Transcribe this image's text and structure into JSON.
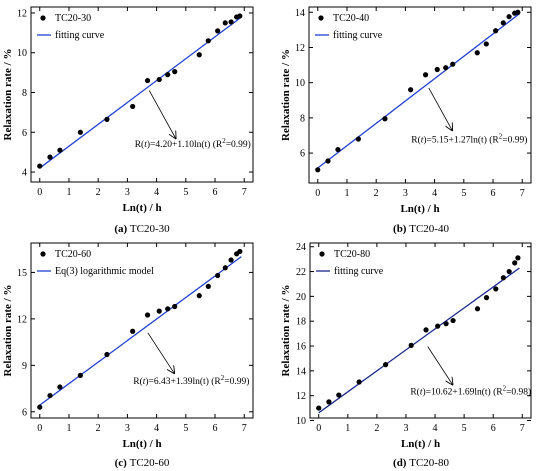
{
  "figure": {
    "y_axis_label": "Relaxation rate / %",
    "x_axis_label": "Ln(t) / h"
  },
  "chart_data": [
    {
      "type": "scatter",
      "caption_letter": "(a)",
      "caption_text": "TC20-30",
      "xlim": [
        -0.3,
        7.3
      ],
      "ylim": [
        3.5,
        12.3
      ],
      "xticks": [
        0,
        1,
        2,
        3,
        4,
        5,
        6,
        7
      ],
      "yticks": [
        4,
        6,
        8,
        10,
        12
      ],
      "legend_position": "top-left",
      "series": [
        {
          "name": "TC20-30",
          "kind": "points",
          "color": "#000000",
          "x": [
            0,
            0.35,
            0.69,
            1.39,
            2.3,
            3.18,
            3.69,
            4.09,
            4.38,
            4.62,
            5.46,
            5.77,
            6.09,
            6.35,
            6.55,
            6.74,
            6.85
          ],
          "y": [
            4.3,
            4.75,
            5.1,
            6.0,
            6.65,
            7.3,
            8.6,
            8.65,
            8.9,
            9.05,
            9.9,
            10.6,
            11.1,
            11.5,
            11.55,
            11.8,
            11.85
          ]
        },
        {
          "name": "fitting curve",
          "kind": "line",
          "color": "#1f3fd1",
          "intercept": 4.2,
          "slope": 1.1,
          "x_range": [
            0,
            6.9
          ]
        }
      ],
      "annotation": {
        "prefix": "R(",
        "var": "t",
        "mid": ")=4.20+1.10ln(t)",
        "r2": "(R",
        "sup": "2",
        "r2_end": "=0.99)",
        "arrow_from": [
          3.75,
          8.1
        ],
        "arrow_to": [
          4.65,
          5.7
        ],
        "text_at": [
          3.25,
          5.25
        ]
      }
    },
    {
      "type": "scatter",
      "caption_letter": "(b)",
      "caption_text": "TC20-40",
      "xlim": [
        -0.3,
        7.3
      ],
      "ylim": [
        4.3,
        14.3
      ],
      "xticks": [
        0,
        1,
        2,
        3,
        4,
        5,
        6,
        7
      ],
      "yticks": [
        6,
        8,
        10,
        12,
        14
      ],
      "legend_position": "top-left",
      "series": [
        {
          "name": "TC20-40",
          "kind": "points",
          "color": "#000000",
          "x": [
            0,
            0.35,
            0.69,
            1.39,
            2.3,
            3.18,
            3.69,
            4.09,
            4.38,
            4.62,
            5.46,
            5.77,
            6.09,
            6.35,
            6.55,
            6.74,
            6.85
          ],
          "y": [
            5.05,
            5.55,
            6.2,
            6.8,
            7.95,
            9.6,
            10.45,
            10.75,
            10.85,
            11.05,
            11.7,
            12.2,
            12.95,
            13.4,
            13.75,
            13.95,
            14.0
          ]
        },
        {
          "name": "fitting curve",
          "kind": "line",
          "color": "#1f3fd1",
          "intercept": 5.15,
          "slope": 1.27,
          "x_range": [
            0,
            6.9
          ]
        }
      ],
      "annotation": {
        "prefix": "R(",
        "var": "t",
        "mid": ")=5.15+1.27ln(t)",
        "r2": "(R",
        "sup": "2",
        "r2_end": "=0.99)",
        "arrow_from": [
          3.8,
          9.7
        ],
        "arrow_to": [
          4.6,
          7.3
        ],
        "text_at": [
          3.2,
          6.6
        ]
      }
    },
    {
      "type": "scatter",
      "caption_letter": "(c)",
      "caption_text": "TC20-60",
      "xlim": [
        -0.3,
        7.3
      ],
      "ylim": [
        5.6,
        16.9
      ],
      "xticks": [
        0,
        1,
        2,
        3,
        4,
        5,
        6,
        7
      ],
      "yticks": [
        6,
        9,
        12,
        15
      ],
      "legend_position": "top-left",
      "series": [
        {
          "name": "TC20-60",
          "kind": "points",
          "color": "#000000",
          "x": [
            0,
            0.35,
            0.69,
            1.39,
            2.3,
            3.18,
            3.69,
            4.09,
            4.38,
            4.62,
            5.46,
            5.77,
            6.09,
            6.35,
            6.55,
            6.74,
            6.85
          ],
          "y": [
            6.3,
            7.05,
            7.6,
            8.35,
            9.7,
            11.2,
            12.25,
            12.5,
            12.65,
            12.8,
            13.5,
            14.1,
            14.8,
            15.3,
            15.8,
            16.2,
            16.35
          ]
        },
        {
          "name": "Eq(3) logarithmic model",
          "kind": "line",
          "color": "#1f3fd1",
          "intercept": 6.43,
          "slope": 1.39,
          "x_range": [
            0,
            6.9
          ]
        }
      ],
      "annotation": {
        "prefix": "R(",
        "var": "t",
        "mid": ")=6.43+1.39ln(t)",
        "r2": "(R",
        "sup": "2",
        "r2_end": "=0.99)",
        "arrow_from": [
          3.7,
          11.1
        ],
        "arrow_to": [
          4.6,
          8.5
        ],
        "text_at": [
          3.2,
          7.8
        ]
      }
    },
    {
      "type": "scatter",
      "caption_letter": "(d)",
      "caption_text": "TC20-80",
      "xlim": [
        -0.3,
        7.3
      ],
      "ylim": [
        10.2,
        24.3
      ],
      "xticks": [
        0,
        1,
        2,
        3,
        4,
        5,
        6,
        7
      ],
      "yticks": [
        10,
        12,
        14,
        16,
        18,
        20,
        22,
        24
      ],
      "legend_position": "top-left",
      "series": [
        {
          "name": "TC20-80",
          "kind": "points",
          "color": "#000000",
          "x": [
            0,
            0.35,
            0.69,
            1.39,
            2.3,
            3.18,
            3.69,
            4.09,
            4.38,
            4.62,
            5.46,
            5.77,
            6.09,
            6.35,
            6.55,
            6.74,
            6.85
          ],
          "y": [
            11.0,
            11.5,
            12.05,
            13.1,
            14.5,
            16.05,
            17.3,
            17.6,
            17.8,
            18.05,
            19.0,
            19.9,
            20.6,
            21.5,
            22.0,
            22.7,
            23.1
          ]
        },
        {
          "name": "fitting curve",
          "kind": "line",
          "color": "#1a2a8c",
          "intercept": 10.62,
          "slope": 1.69,
          "x_range": [
            0,
            6.9
          ]
        }
      ],
      "annotation": {
        "prefix": "R(",
        "var": "t",
        "mid": ")=10.62+1.69ln(t)",
        "r2": "(R",
        "sup": "2",
        "r2_end": "=0.98)",
        "arrow_from": [
          3.75,
          15.95
        ],
        "arrow_to": [
          4.6,
          12.9
        ],
        "text_at": [
          3.15,
          12.1
        ]
      }
    }
  ]
}
